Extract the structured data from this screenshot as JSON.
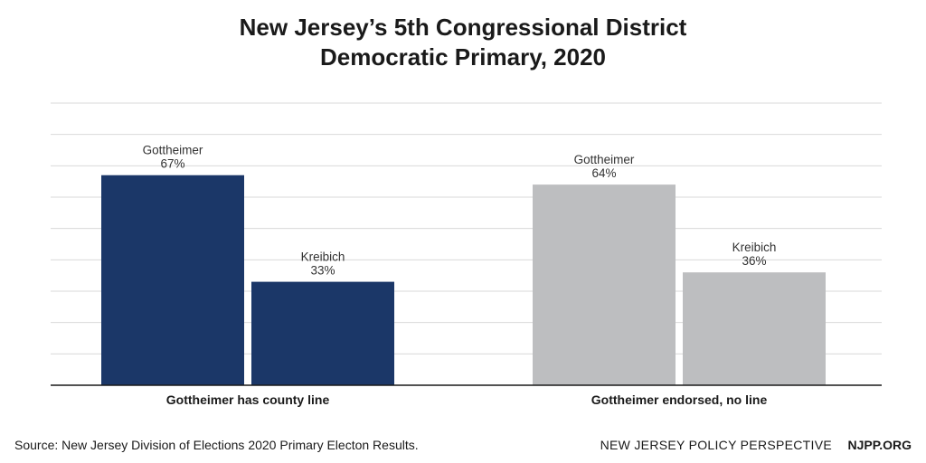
{
  "chart_data": {
    "type": "bar",
    "title": [
      "New Jersey’s 5th Congressional District",
      "Democratic Primary, 2020"
    ],
    "categories": [
      "Gottheimer has county line",
      "Gottheimer endorsed, no line"
    ],
    "series": [
      {
        "name": "Gottheimer",
        "values": [
          67,
          64
        ],
        "labels": [
          "67%",
          "64%"
        ]
      },
      {
        "name": "Kreibich",
        "values": [
          33,
          36
        ],
        "labels": [
          "33%",
          "36%"
        ]
      }
    ],
    "colors": [
      [
        "#1b3768",
        "#1b3768"
      ],
      [
        "#bdbec0",
        "#bdbec0"
      ]
    ],
    "ylim": [
      0,
      90
    ],
    "grid": true,
    "xlabel": "",
    "ylabel": ""
  },
  "footer": {
    "source": "Source: New Jersey Division of Elections 2020 Primary Electon Results.",
    "org": "NEW JERSEY POLICY PERSPECTIVE",
    "site": "NJPP.ORG"
  }
}
